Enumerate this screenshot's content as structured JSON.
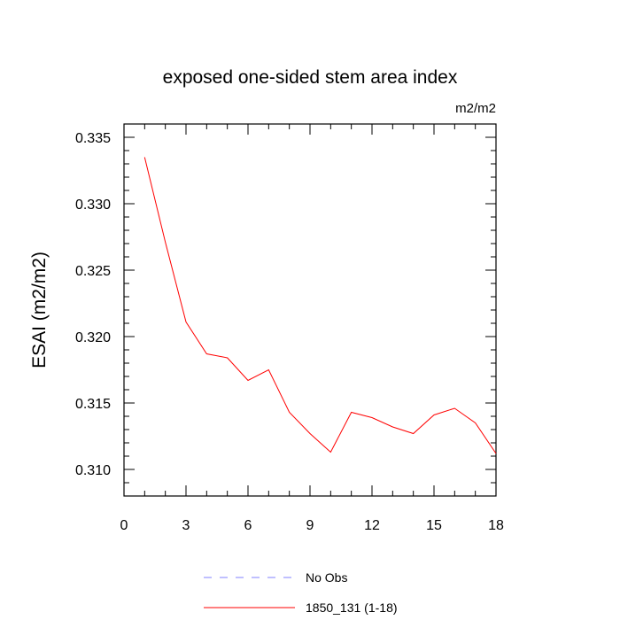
{
  "chart_data": {
    "type": "line",
    "title": "exposed one-sided stem area index",
    "units": "m2/m2",
    "xlabel": "",
    "ylabel": "ESAI  (m2/m2)",
    "xlim": [
      0,
      18
    ],
    "ylim": [
      0.308,
      0.336
    ],
    "x_ticks": [
      0,
      3,
      6,
      9,
      12,
      15,
      18
    ],
    "x_tick_labels": [
      "0",
      "3",
      "6",
      "9",
      "12",
      "15",
      "18"
    ],
    "y_ticks": [
      0.31,
      0.315,
      0.32,
      0.325,
      0.33,
      0.335
    ],
    "y_tick_labels": [
      "0.310",
      "0.315",
      "0.320",
      "0.325",
      "0.330",
      "0.335"
    ],
    "series": [
      {
        "name": "1850_131 (1-18)",
        "color": "#ff0000",
        "style": "solid",
        "x": [
          1,
          2,
          3,
          4,
          5,
          6,
          7,
          8,
          9,
          10,
          11,
          12,
          13,
          14,
          15,
          16,
          17,
          18
        ],
        "values": [
          0.3335,
          0.3271,
          0.3211,
          0.3187,
          0.3184,
          0.3167,
          0.3175,
          0.3143,
          0.3127,
          0.3113,
          0.3143,
          0.3139,
          0.3132,
          0.3127,
          0.3141,
          0.3146,
          0.3135,
          0.3112
        ]
      }
    ],
    "legend": [
      {
        "label": "No Obs",
        "color": "#8080ff",
        "style": "dashed"
      },
      {
        "label": "1850_131 (1-18)",
        "color": "#ff0000",
        "style": "solid"
      }
    ],
    "legend_position": "bottom"
  }
}
